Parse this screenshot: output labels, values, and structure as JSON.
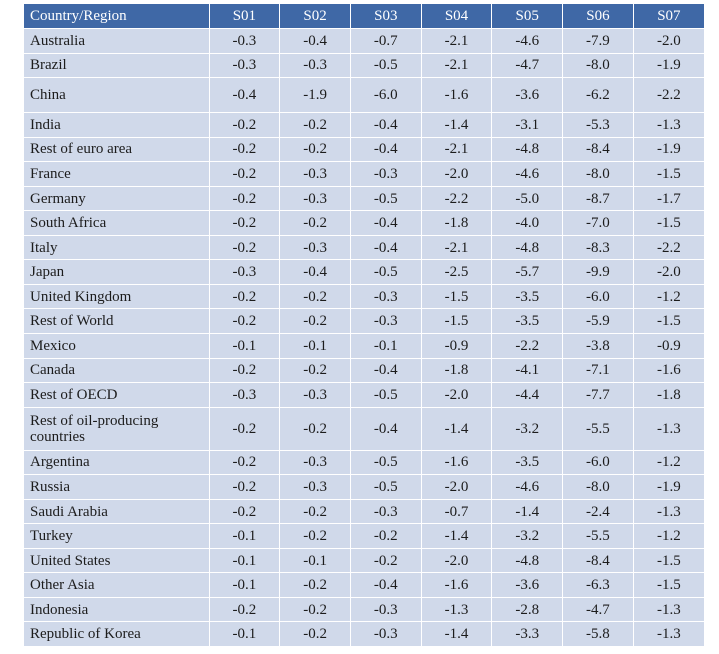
{
  "table": {
    "headers": [
      "Country/Region",
      "S01",
      "S02",
      "S03",
      "S04",
      "S05",
      "S06",
      "S07"
    ],
    "rows": [
      {
        "country": "Australia",
        "values": [
          "-0.3",
          "-0.4",
          "-0.7",
          "-2.1",
          "-4.6",
          "-7.9",
          "-2.0"
        ]
      },
      {
        "country": "Brazil",
        "values": [
          "-0.3",
          "-0.3",
          "-0.5",
          "-2.1",
          "-4.7",
          "-8.0",
          "-1.9"
        ]
      },
      {
        "country": "China",
        "values": [
          "-0.4",
          "-1.9",
          "-6.0",
          "-1.6",
          "-3.6",
          "-6.2",
          "-2.2"
        ]
      },
      {
        "country": "India",
        "values": [
          "-0.2",
          "-0.2",
          "-0.4",
          "-1.4",
          "-3.1",
          "-5.3",
          "-1.3"
        ]
      },
      {
        "country": "Rest of euro area",
        "values": [
          "-0.2",
          "-0.2",
          "-0.4",
          "-2.1",
          "-4.8",
          "-8.4",
          "-1.9"
        ]
      },
      {
        "country": "France",
        "values": [
          "-0.2",
          "-0.3",
          "-0.3",
          "-2.0",
          "-4.6",
          "-8.0",
          "-1.5"
        ]
      },
      {
        "country": "Germany",
        "values": [
          "-0.2",
          "-0.3",
          "-0.5",
          "-2.2",
          "-5.0",
          "-8.7",
          "-1.7"
        ]
      },
      {
        "country": "South Africa",
        "values": [
          "-0.2",
          "-0.2",
          "-0.4",
          "-1.8",
          "-4.0",
          "-7.0",
          "-1.5"
        ]
      },
      {
        "country": "Italy",
        "values": [
          "-0.2",
          "-0.3",
          "-0.4",
          "-2.1",
          "-4.8",
          "-8.3",
          "-2.2"
        ]
      },
      {
        "country": "Japan",
        "values": [
          "-0.3",
          "-0.4",
          "-0.5",
          "-2.5",
          "-5.7",
          "-9.9",
          "-2.0"
        ]
      },
      {
        "country": "United Kingdom",
        "values": [
          "-0.2",
          "-0.2",
          "-0.3",
          "-1.5",
          "-3.5",
          "-6.0",
          "-1.2"
        ]
      },
      {
        "country": "Rest of World",
        "values": [
          "-0.2",
          "-0.2",
          "-0.3",
          "-1.5",
          "-3.5",
          "-5.9",
          "-1.5"
        ]
      },
      {
        "country": "Mexico",
        "values": [
          "-0.1",
          "-0.1",
          "-0.1",
          "-0.9",
          "-2.2",
          "-3.8",
          "-0.9"
        ]
      },
      {
        "country": "Canada",
        "values": [
          "-0.2",
          "-0.2",
          "-0.4",
          "-1.8",
          "-4.1",
          "-7.1",
          "-1.6"
        ]
      },
      {
        "country": "Rest of OECD",
        "values": [
          "-0.3",
          "-0.3",
          "-0.5",
          "-2.0",
          "-4.4",
          "-7.7",
          "-1.8"
        ]
      },
      {
        "country": "Rest of oil-producing countries",
        "values": [
          "-0.2",
          "-0.2",
          "-0.4",
          "-1.4",
          "-3.2",
          "-5.5",
          "-1.3"
        ]
      },
      {
        "country": "Argentina",
        "values": [
          "-0.2",
          "-0.3",
          "-0.5",
          "-1.6",
          "-3.5",
          "-6.0",
          "-1.2"
        ]
      },
      {
        "country": "Russia",
        "values": [
          "-0.2",
          "-0.3",
          "-0.5",
          "-2.0",
          "-4.6",
          "-8.0",
          "-1.9"
        ]
      },
      {
        "country": "Saudi Arabia",
        "values": [
          "-0.2",
          "-0.2",
          "-0.3",
          "-0.7",
          "-1.4",
          "-2.4",
          "-1.3"
        ]
      },
      {
        "country": "Turkey",
        "values": [
          "-0.1",
          "-0.2",
          "-0.2",
          "-1.4",
          "-3.2",
          "-5.5",
          "-1.2"
        ]
      },
      {
        "country": "United States",
        "values": [
          "-0.1",
          "-0.1",
          "-0.2",
          "-2.0",
          "-4.8",
          "-8.4",
          "-1.5"
        ]
      },
      {
        "country": "Other Asia",
        "values": [
          "-0.1",
          "-0.2",
          "-0.4",
          "-1.6",
          "-3.6",
          "-6.3",
          "-1.5"
        ]
      },
      {
        "country": "Indonesia",
        "values": [
          "-0.2",
          "-0.2",
          "-0.3",
          "-1.3",
          "-2.8",
          "-4.7",
          "-1.3"
        ]
      },
      {
        "country": "Republic of Korea",
        "values": [
          "-0.1",
          "-0.2",
          "-0.3",
          "-1.4",
          "-3.3",
          "-5.8",
          "-1.3"
        ]
      }
    ]
  },
  "colors": {
    "header_bg": "#3f68a6",
    "header_text": "#ffffff",
    "row_bg": "#d0d9ea",
    "cell_text": "#1c1c1c"
  }
}
